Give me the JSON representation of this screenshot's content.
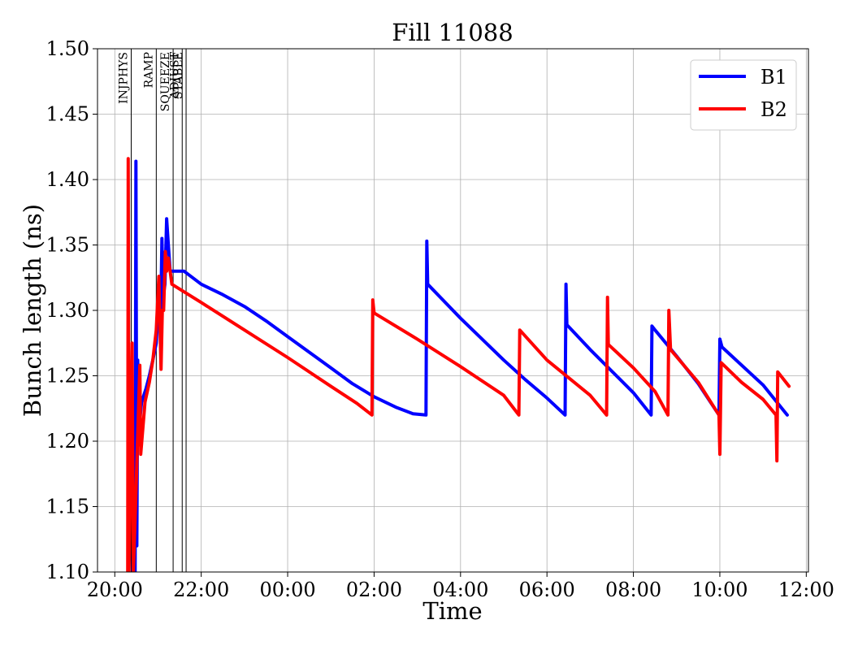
{
  "chart_data": {
    "type": "line",
    "title": "Fill 11088",
    "xlabel": "Time",
    "ylabel": "Bunch length (ns)",
    "x_unit": "hours of day (continuing past midnight)",
    "xlim": [
      19.6,
      36.05
    ],
    "ylim": [
      1.1,
      1.5
    ],
    "grid": true,
    "legend_position": "top-right",
    "x_ticks": [
      {
        "label": "20:00",
        "value": 20
      },
      {
        "label": "22:00",
        "value": 22
      },
      {
        "label": "00:00",
        "value": 24
      },
      {
        "label": "02:00",
        "value": 26
      },
      {
        "label": "04:00",
        "value": 28
      },
      {
        "label": "06:00",
        "value": 30
      },
      {
        "label": "08:00",
        "value": 32
      },
      {
        "label": "10:00",
        "value": 34
      },
      {
        "label": "12:00",
        "value": 36
      }
    ],
    "y_ticks": [
      "1.10",
      "1.15",
      "1.20",
      "1.25",
      "1.30",
      "1.35",
      "1.40",
      "1.45",
      "1.50"
    ],
    "phase_markers": [
      {
        "label": "INJPHYS",
        "x": 20.38
      },
      {
        "label": "RAMP",
        "x": 20.96
      },
      {
        "label": "SQUEEZE",
        "x": 21.35
      },
      {
        "label": "ADJUST",
        "x": 21.56
      },
      {
        "label": "STABLE",
        "x": 21.65
      }
    ],
    "series": [
      {
        "name": "B1",
        "color": "#0000ff",
        "points": [
          [
            20.42,
            1.1
          ],
          [
            20.45,
            1.18
          ],
          [
            20.47,
            1.1
          ],
          [
            20.49,
            1.414
          ],
          [
            20.51,
            1.12
          ],
          [
            20.53,
            1.262
          ],
          [
            20.56,
            1.21
          ],
          [
            20.62,
            1.23
          ],
          [
            20.72,
            1.24
          ],
          [
            20.8,
            1.25
          ],
          [
            20.88,
            1.262
          ],
          [
            20.96,
            1.275
          ],
          [
            21.0,
            1.3
          ],
          [
            21.06,
            1.29
          ],
          [
            21.09,
            1.355
          ],
          [
            21.12,
            1.31
          ],
          [
            21.16,
            1.32
          ],
          [
            21.2,
            1.37
          ],
          [
            21.24,
            1.35
          ],
          [
            21.28,
            1.33
          ],
          [
            21.6,
            1.33
          ],
          [
            22.0,
            1.32
          ],
          [
            22.5,
            1.312
          ],
          [
            23.0,
            1.303
          ],
          [
            23.5,
            1.292
          ],
          [
            24.0,
            1.28
          ],
          [
            24.5,
            1.268
          ],
          [
            25.0,
            1.256
          ],
          [
            25.5,
            1.244
          ],
          [
            26.0,
            1.234
          ],
          [
            26.5,
            1.226
          ],
          [
            26.9,
            1.221
          ],
          [
            27.2,
            1.22
          ],
          [
            27.22,
            1.353
          ],
          [
            27.24,
            1.32
          ],
          [
            28.0,
            1.294
          ],
          [
            29.0,
            1.262
          ],
          [
            29.5,
            1.247
          ],
          [
            30.0,
            1.233
          ],
          [
            30.42,
            1.22
          ],
          [
            30.44,
            1.32
          ],
          [
            30.46,
            1.289
          ],
          [
            31.0,
            1.27
          ],
          [
            32.0,
            1.237
          ],
          [
            32.41,
            1.22
          ],
          [
            32.43,
            1.288
          ],
          [
            32.5,
            1.285
          ],
          [
            33.0,
            1.265
          ],
          [
            33.5,
            1.244
          ],
          [
            33.98,
            1.22
          ],
          [
            34.0,
            1.278
          ],
          [
            34.05,
            1.272
          ],
          [
            35.0,
            1.243
          ],
          [
            35.56,
            1.22
          ]
        ]
      },
      {
        "name": "B2",
        "color": "#ff0000",
        "points": [
          [
            20.3,
            1.1
          ],
          [
            20.31,
            1.416
          ],
          [
            20.33,
            1.1
          ],
          [
            20.4,
            1.275
          ],
          [
            20.43,
            1.1
          ],
          [
            20.47,
            1.14
          ],
          [
            20.58,
            1.258
          ],
          [
            20.6,
            1.19
          ],
          [
            20.7,
            1.23
          ],
          [
            20.8,
            1.245
          ],
          [
            20.88,
            1.262
          ],
          [
            20.96,
            1.285
          ],
          [
            21.02,
            1.326
          ],
          [
            21.07,
            1.255
          ],
          [
            21.1,
            1.3
          ],
          [
            21.13,
            1.3
          ],
          [
            21.17,
            1.345
          ],
          [
            21.2,
            1.33
          ],
          [
            21.24,
            1.34
          ],
          [
            21.28,
            1.33
          ],
          [
            21.32,
            1.32
          ],
          [
            22.0,
            1.306
          ],
          [
            23.0,
            1.285
          ],
          [
            24.0,
            1.264
          ],
          [
            25.0,
            1.242
          ],
          [
            25.6,
            1.229
          ],
          [
            25.95,
            1.22
          ],
          [
            25.97,
            1.308
          ],
          [
            26.0,
            1.298
          ],
          [
            27.0,
            1.278
          ],
          [
            28.0,
            1.257
          ],
          [
            29.0,
            1.235
          ],
          [
            29.35,
            1.22
          ],
          [
            29.37,
            1.285
          ],
          [
            30.0,
            1.262
          ],
          [
            31.0,
            1.235
          ],
          [
            31.38,
            1.22
          ],
          [
            31.4,
            1.31
          ],
          [
            31.42,
            1.274
          ],
          [
            32.0,
            1.256
          ],
          [
            32.5,
            1.238
          ],
          [
            32.8,
            1.22
          ],
          [
            32.82,
            1.3
          ],
          [
            32.86,
            1.27
          ],
          [
            33.5,
            1.245
          ],
          [
            33.98,
            1.22
          ],
          [
            34.0,
            1.19
          ],
          [
            34.03,
            1.26
          ],
          [
            34.5,
            1.245
          ],
          [
            35.0,
            1.232
          ],
          [
            35.3,
            1.22
          ],
          [
            35.32,
            1.185
          ],
          [
            35.34,
            1.253
          ],
          [
            35.6,
            1.242
          ]
        ]
      }
    ]
  }
}
